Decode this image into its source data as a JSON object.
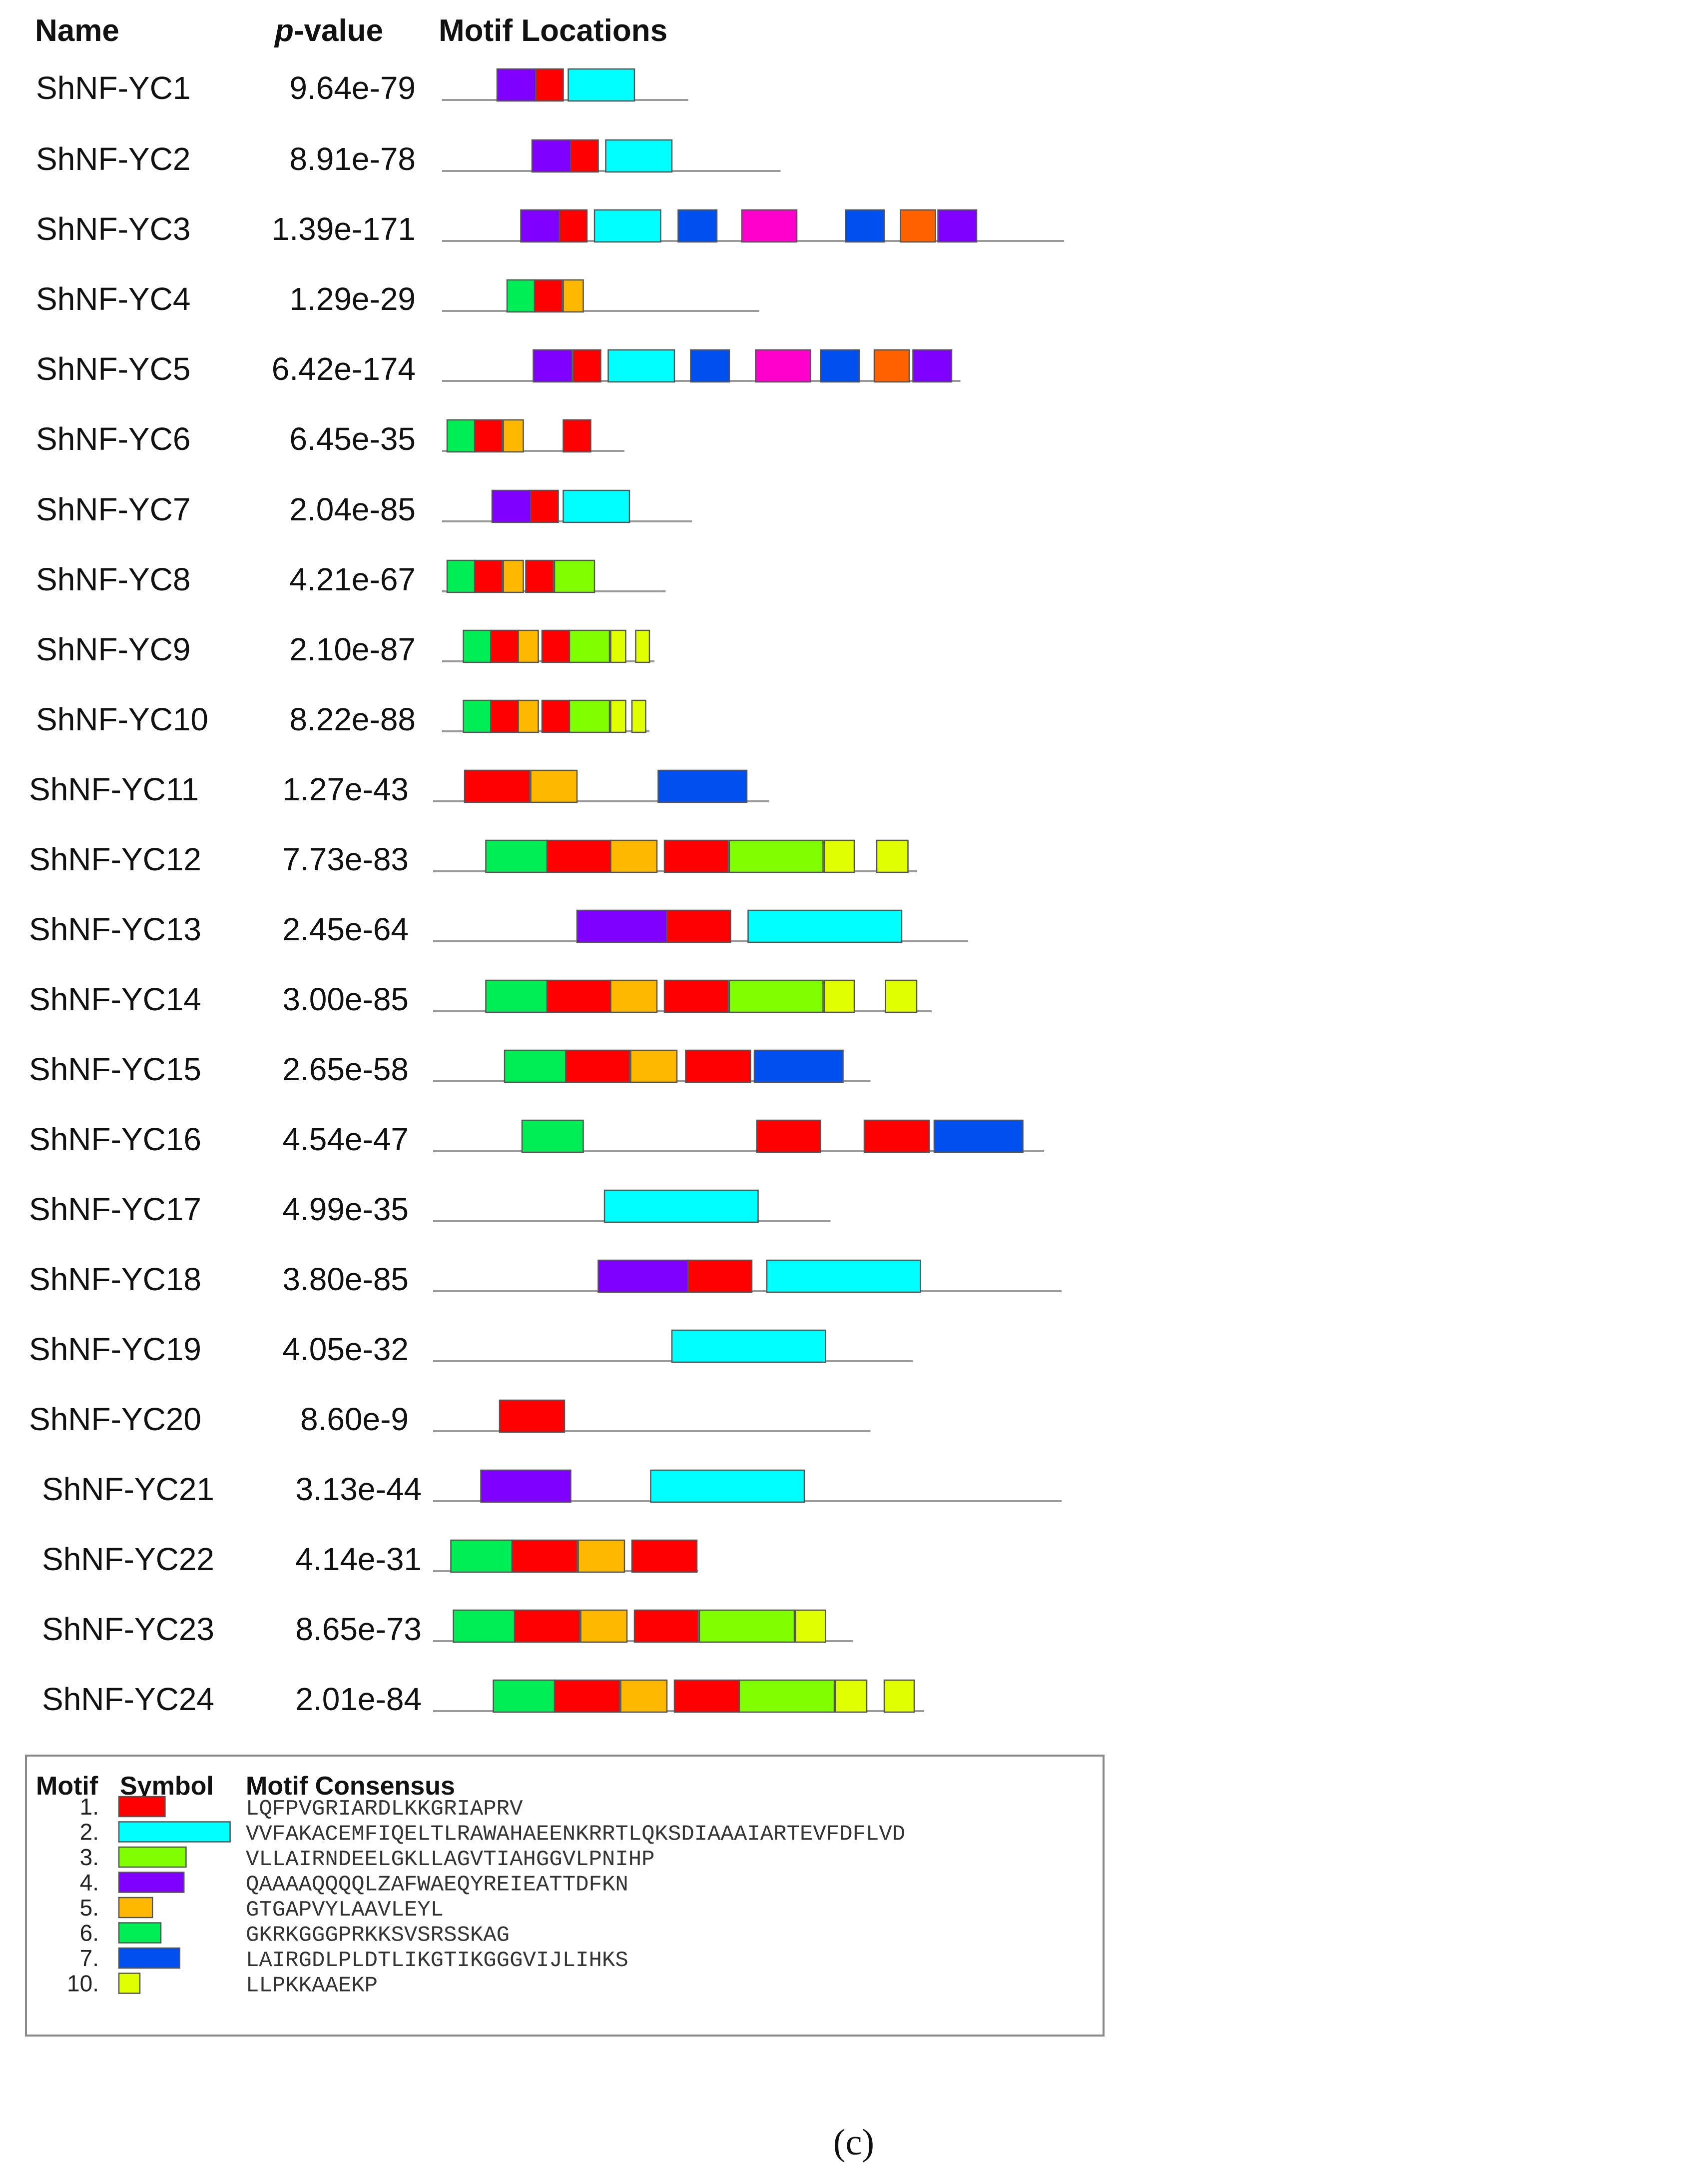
{
  "headers": {
    "name": "Name",
    "p_prefix": "p",
    "p_suffix": "-value",
    "motif_locations": "Motif Locations"
  },
  "colors": {
    "1": "#ff0000",
    "2": "#00ffff",
    "3": "#80ff00",
    "4": "#8000ff",
    "5": "#ffb800",
    "6": "#00ee55",
    "7": "#0050f0",
    "8": "#ff00cc",
    "9": "#ff6000",
    "10": "#e0ff00"
  },
  "chart_data": {
    "type": "motif-diagram",
    "x_unit": "amino acid position",
    "sequences": [
      {
        "name": "ShNF-YC1",
        "pvalue": "9.64e-79",
        "length": 197,
        "motifs": [
          [
            4,
            44,
            31
          ],
          [
            1,
            75,
            22
          ],
          [
            2,
            101,
            53
          ]
        ]
      },
      {
        "name": "ShNF-YC2",
        "pvalue": "8.91e-78",
        "length": 271,
        "motifs": [
          [
            4,
            72,
            31
          ],
          [
            1,
            103,
            22
          ],
          [
            2,
            131,
            53
          ]
        ]
      },
      {
        "name": "ShNF-YC3",
        "pvalue": "1.39e-171",
        "length": 498,
        "motifs": [
          [
            4,
            63,
            31
          ],
          [
            1,
            94,
            22
          ],
          [
            2,
            122,
            53
          ],
          [
            7,
            189,
            31
          ],
          [
            8,
            240,
            44
          ],
          [
            7,
            323,
            31
          ],
          [
            9,
            367,
            28
          ],
          [
            4,
            397,
            31
          ]
        ]
      },
      {
        "name": "ShNF-YC4",
        "pvalue": "1.29e-29",
        "length": 254,
        "motifs": [
          [
            6,
            52,
            22
          ],
          [
            1,
            74,
            22
          ],
          [
            5,
            97,
            16
          ]
        ]
      },
      {
        "name": "ShNF-YC5",
        "pvalue": "6.42e-174",
        "length": 415,
        "motifs": [
          [
            4,
            73,
            31
          ],
          [
            1,
            105,
            22
          ],
          [
            2,
            133,
            53
          ],
          [
            7,
            199,
            31
          ],
          [
            8,
            251,
            44
          ],
          [
            7,
            303,
            31
          ],
          [
            9,
            346,
            28
          ],
          [
            4,
            377,
            31
          ]
        ]
      },
      {
        "name": "ShNF-YC6",
        "pvalue": "6.45e-35",
        "length": 146,
        "motifs": [
          [
            6,
            4,
            22
          ],
          [
            1,
            26,
            22
          ],
          [
            5,
            49,
            16
          ],
          [
            1,
            97,
            22
          ]
        ]
      },
      {
        "name": "ShNF-YC7",
        "pvalue": "2.04e-85",
        "length": 200,
        "motifs": [
          [
            4,
            40,
            31
          ],
          [
            1,
            71,
            22
          ],
          [
            2,
            97,
            53
          ]
        ]
      },
      {
        "name": "ShNF-YC8",
        "pvalue": "4.21e-67",
        "length": 179,
        "motifs": [
          [
            6,
            4,
            22
          ],
          [
            1,
            26,
            22
          ],
          [
            5,
            49,
            16
          ],
          [
            1,
            67,
            22
          ],
          [
            3,
            90,
            32
          ]
        ]
      },
      {
        "name": "ShNF-YC9",
        "pvalue": "2.10e-87",
        "length": 170,
        "motifs": [
          [
            6,
            17,
            22
          ],
          [
            1,
            39,
            22
          ],
          [
            5,
            61,
            16
          ],
          [
            1,
            80,
            22
          ],
          [
            3,
            102,
            32
          ],
          [
            10,
            135,
            12
          ],
          [
            10,
            155,
            11
          ]
        ]
      },
      {
        "name": "ShNF-YC10",
        "pvalue": "8.22e-88",
        "length": 166,
        "motifs": [
          [
            6,
            17,
            22
          ],
          [
            1,
            39,
            22
          ],
          [
            5,
            61,
            16
          ],
          [
            1,
            80,
            22
          ],
          [
            3,
            102,
            32
          ],
          [
            10,
            135,
            12
          ],
          [
            10,
            152,
            11
          ]
        ]
      },
      {
        "name": "ShNF-YC11",
        "pvalue": "1.27e-43",
        "length": 262,
        "motifs": [
          [
            1,
            18,
            52
          ],
          [
            5,
            71,
            37
          ],
          [
            7,
            173,
            71
          ]
        ]
      },
      {
        "name": "ShNF-YC12",
        "pvalue": "7.73e-83",
        "length": 380,
        "motifs": [
          [
            6,
            35,
            49
          ],
          [
            1,
            84,
            51
          ],
          [
            5,
            135,
            37
          ],
          [
            1,
            178,
            51
          ],
          [
            3,
            230,
            75
          ],
          [
            10,
            306,
            24
          ],
          [
            10,
            348,
            25
          ]
        ]
      },
      {
        "name": "ShNF-YC13",
        "pvalue": "2.45e-64",
        "length": 421,
        "motifs": [
          [
            4,
            108,
            72
          ],
          [
            1,
            180,
            51
          ],
          [
            2,
            245,
            123
          ]
        ]
      },
      {
        "name": "ShNF-YC14",
        "pvalue": "3.00e-85",
        "length": 392,
        "motifs": [
          [
            6,
            35,
            49
          ],
          [
            1,
            84,
            51
          ],
          [
            5,
            135,
            37
          ],
          [
            1,
            178,
            51
          ],
          [
            3,
            230,
            75
          ],
          [
            10,
            306,
            24
          ],
          [
            10,
            355,
            25
          ]
        ]
      },
      {
        "name": "ShNF-YC15",
        "pvalue": "2.65e-58",
        "length": 343,
        "motifs": [
          [
            6,
            50,
            49
          ],
          [
            1,
            99,
            51
          ],
          [
            5,
            151,
            37
          ],
          [
            1,
            195,
            52
          ],
          [
            7,
            250,
            71
          ]
        ]
      },
      {
        "name": "ShNF-YC16",
        "pvalue": "4.54e-47",
        "length": 482,
        "motifs": [
          [
            6,
            64,
            49
          ],
          [
            1,
            252,
            51
          ],
          [
            1,
            338,
            52
          ],
          [
            7,
            394,
            71
          ]
        ]
      },
      {
        "name": "ShNF-YC17",
        "pvalue": "4.99e-35",
        "length": 311,
        "motifs": [
          [
            2,
            130,
            123
          ]
        ]
      },
      {
        "name": "ShNF-YC18",
        "pvalue": "3.80e-85",
        "length": 496,
        "motifs": [
          [
            4,
            125,
            72
          ],
          [
            1,
            197,
            51
          ],
          [
            2,
            260,
            123
          ]
        ]
      },
      {
        "name": "ShNF-YC19",
        "pvalue": "4.05e-32",
        "length": 377,
        "motifs": [
          [
            2,
            184,
            123
          ]
        ]
      },
      {
        "name": "ShNF-YC20",
        "pvalue": "8.60e-9",
        "length": 343,
        "motifs": [
          [
            1,
            46,
            52
          ]
        ]
      },
      {
        "name": "ShNF-YC21",
        "pvalue": "3.13e-44",
        "length": 496,
        "motifs": [
          [
            4,
            31,
            72
          ],
          [
            2,
            167,
            123
          ]
        ]
      },
      {
        "name": "ShNF-YC22",
        "pvalue": "4.14e-31",
        "length": 205,
        "motifs": [
          [
            6,
            7,
            49
          ],
          [
            1,
            56,
            52
          ],
          [
            5,
            109,
            37
          ],
          [
            1,
            152,
            52
          ]
        ]
      },
      {
        "name": "ShNF-YC23",
        "pvalue": "8.65e-73",
        "length": 329,
        "motifs": [
          [
            6,
            9,
            49
          ],
          [
            1,
            58,
            52
          ],
          [
            5,
            111,
            37
          ],
          [
            1,
            154,
            51
          ],
          [
            3,
            206,
            76
          ],
          [
            10,
            283,
            24
          ]
        ]
      },
      {
        "name": "ShNF-YC24",
        "pvalue": "2.01e-84",
        "length": 386,
        "motifs": [
          [
            6,
            41,
            49
          ],
          [
            1,
            90,
            52
          ],
          [
            5,
            143,
            37
          ],
          [
            1,
            186,
            52
          ],
          [
            3,
            238,
            76
          ],
          [
            10,
            315,
            25
          ],
          [
            10,
            354,
            24
          ]
        ]
      }
    ]
  },
  "legend": {
    "headers": {
      "motif": "Motif",
      "symbol": "Symbol",
      "consensus": "Motif Consensus"
    },
    "entries": [
      {
        "label": "1.",
        "motif": "1",
        "consensus": "LQFPVGRIARDLKKGRIAPRV"
      },
      {
        "label": "2.",
        "motif": "2",
        "consensus": "VVFAKACEMFIQELTLRAWAHAEENKRRTLQKSDIAAAIARTEVFDFLVD"
      },
      {
        "label": "3.",
        "motif": "3",
        "consensus": "VLLAIRNDEELGKLLAGVTIAHGGVLPNIHP"
      },
      {
        "label": "4.",
        "motif": "4",
        "consensus": "QAAAAQQQQLZAFWAEQYREIEATTDFKN"
      },
      {
        "label": "5.",
        "motif": "5",
        "consensus": "GTGAPVYLAAVLEYL"
      },
      {
        "label": "6.",
        "motif": "6",
        "consensus": "GKRKGGGPRKKSVSRSSKAG"
      },
      {
        "label": "7.",
        "motif": "7",
        "consensus": "LAIRGDLPLDTLIKGTIKGGGVIJLIHKS"
      },
      {
        "label": "10.",
        "motif": "10",
        "consensus": "LLPKKAAEKP"
      }
    ]
  },
  "caption": "(c)"
}
